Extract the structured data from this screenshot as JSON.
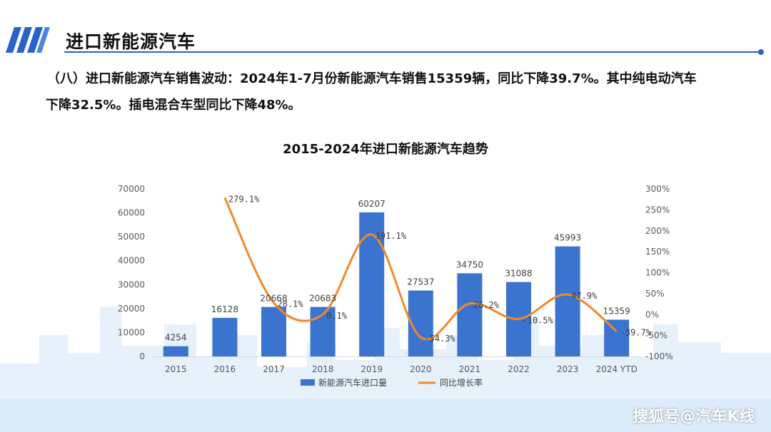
{
  "header": {
    "title": "进口新能源汽车"
  },
  "summary": {
    "line1": "（八）进口新能源汽车销售波动：2024年1-7月份新能源汽车销售15359辆，同比下降39.7%。其中纯电动汽车",
    "line2": "下降32.5%。插电混合车型同比下降48%。"
  },
  "colors": {
    "accent": "#2a62c9",
    "bar": "#3a74cf",
    "line": "#f08a2a",
    "skyline": "#e6f1fb"
  },
  "watermark": "搜狐号@汽车K线",
  "chart_data": {
    "type": "bar+line",
    "title": "2015-2024年进口新能源汽车趋势",
    "categories": [
      "2015",
      "2016",
      "2017",
      "2018",
      "2019",
      "2020",
      "2021",
      "2022",
      "2023",
      "2024 YTD"
    ],
    "series": [
      {
        "name": "新能源汽车进口量",
        "type": "bar",
        "axis": "left",
        "values": [
          4254,
          16128,
          20668,
          20683,
          60207,
          27537,
          34750,
          31088,
          45993,
          15359
        ],
        "labels": [
          "4254",
          "16128",
          "20668",
          "20683",
          "60207",
          "27537",
          "34750",
          "31088",
          "45993",
          "15359"
        ]
      },
      {
        "name": "同比增长率",
        "type": "line",
        "axis": "right",
        "values": [
          null,
          279.1,
          28.1,
          0.1,
          191.1,
          -54.3,
          26.2,
          -10.5,
          47.9,
          -39.7
        ],
        "labels": [
          "",
          "279.1%",
          "28.1%",
          "0.1%",
          "191.1%",
          "-54.3%",
          "26.2%",
          "-10.5%",
          "47.9%",
          "-39.7%"
        ]
      }
    ],
    "y_left": {
      "min": 0,
      "max": 70000,
      "ticks": [
        "0",
        "10000",
        "20000",
        "30000",
        "40000",
        "50000",
        "60000",
        "70000"
      ]
    },
    "y_right": {
      "min": -100,
      "max": 300,
      "ticks": [
        "-100%",
        "-50%",
        "0%",
        "50%",
        "100%",
        "150%",
        "200%",
        "250%",
        "300%"
      ]
    },
    "grid": false,
    "legend_position": "bottom"
  }
}
